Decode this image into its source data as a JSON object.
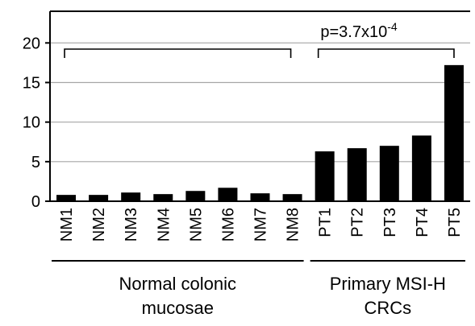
{
  "chart_data": {
    "type": "bar",
    "categories": [
      "NM1",
      "NM2",
      "NM3",
      "NM4",
      "NM5",
      "NM6",
      "NM7",
      "NM8",
      "PT1",
      "PT2",
      "PT3",
      "PT4",
      "PT5"
    ],
    "values": [
      0.8,
      0.8,
      1.1,
      0.9,
      1.3,
      1.7,
      1.0,
      0.9,
      6.3,
      6.7,
      7.0,
      8.3,
      17.2
    ],
    "ylim": [
      0,
      24
    ],
    "yticks": [
      0,
      5,
      10,
      15,
      20
    ],
    "ytick_labels": [
      "0",
      "5",
      "10",
      "15",
      "20"
    ],
    "grid": true,
    "bar_color": "#000000",
    "grid_color": "#a6a6a6",
    "annotation": {
      "base": "p=3.7x10",
      "exponent": "-4"
    },
    "groups": [
      {
        "label_line1": "Normal colonic",
        "label_line2": "mucosae",
        "start": 0,
        "end": 7
      },
      {
        "label_line1": "Primary MSI-H",
        "label_line2": "CRCs",
        "start": 8,
        "end": 12
      }
    ]
  }
}
